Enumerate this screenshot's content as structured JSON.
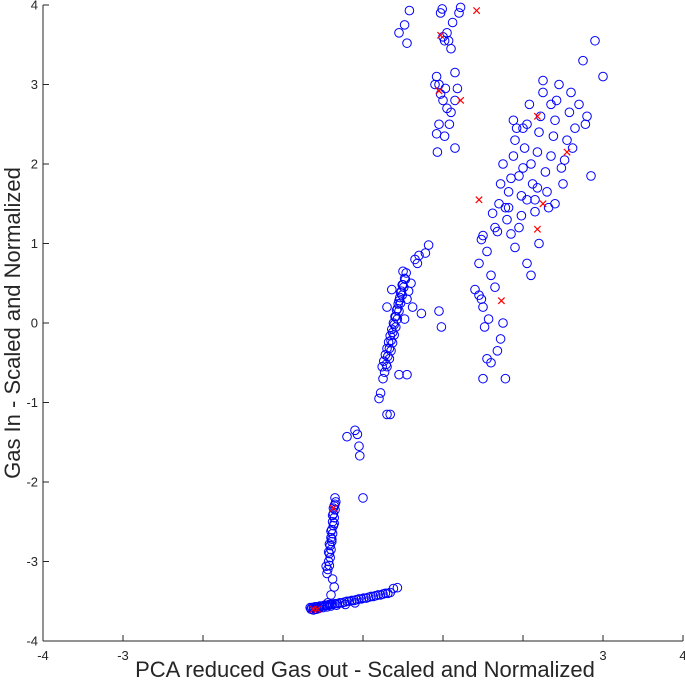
{
  "chart_data": {
    "type": "scatter",
    "xlabel": "PCA reduced Gas out - Scaled and Normalized",
    "ylabel": "Gas In - Scaled and Normalized",
    "xlim": [
      -4,
      4
    ],
    "ylim": [
      -4,
      4
    ],
    "x_tick_labels": [
      {
        "value": -4,
        "label": "-4"
      },
      {
        "value": -3,
        "label": "-3"
      },
      {
        "value": 3,
        "label": "3"
      },
      {
        "value": 4,
        "label": "4"
      }
    ],
    "y_tick_labels": [
      {
        "value": -4,
        "label": "-4"
      },
      {
        "value": -3,
        "label": "-3"
      },
      {
        "value": -2,
        "label": "-2"
      },
      {
        "value": -1,
        "label": "-1"
      },
      {
        "value": 0,
        "label": "0"
      },
      {
        "value": 1,
        "label": "1"
      },
      {
        "value": 2,
        "label": "2"
      },
      {
        "value": 3,
        "label": "3"
      },
      {
        "value": 4,
        "label": "4"
      }
    ],
    "x_ticks": [
      -4,
      -3,
      -2,
      -1,
      0,
      1,
      2,
      3,
      4
    ],
    "grid": false,
    "series": [
      {
        "marker": "circle",
        "color": "#0000ff",
        "points": [
          [
            -0.66,
            -3.58
          ],
          [
            -0.64,
            -3.58
          ],
          [
            -0.62,
            -3.58
          ],
          [
            -0.6,
            -3.57
          ],
          [
            -0.58,
            -3.57
          ],
          [
            -0.56,
            -3.58
          ],
          [
            -0.54,
            -3.56
          ],
          [
            -0.52,
            -3.56
          ],
          [
            -0.5,
            -3.56
          ],
          [
            -0.48,
            -3.55
          ],
          [
            -0.46,
            -3.55
          ],
          [
            -0.44,
            -3.55
          ],
          [
            -0.42,
            -3.54
          ],
          [
            -0.4,
            -3.54
          ],
          [
            -0.38,
            -3.54
          ],
          [
            -0.35,
            -3.53
          ],
          [
            -0.32,
            -3.53
          ],
          [
            -0.29,
            -3.52
          ],
          [
            -0.26,
            -3.52
          ],
          [
            -0.23,
            -3.51
          ],
          [
            -0.2,
            -3.5
          ],
          [
            -0.17,
            -3.5
          ],
          [
            -0.14,
            -3.49
          ],
          [
            -0.11,
            -3.49
          ],
          [
            -0.08,
            -3.48
          ],
          [
            -0.05,
            -3.47
          ],
          [
            -0.02,
            -3.47
          ],
          [
            0.01,
            -3.46
          ],
          [
            0.04,
            -3.46
          ],
          [
            0.07,
            -3.45
          ],
          [
            0.1,
            -3.44
          ],
          [
            0.13,
            -3.44
          ],
          [
            0.16,
            -3.43
          ],
          [
            0.19,
            -3.42
          ],
          [
            0.22,
            -3.42
          ],
          [
            0.25,
            -3.41
          ],
          [
            0.28,
            -3.4
          ],
          [
            0.31,
            -3.4
          ],
          [
            0.34,
            -3.39
          ],
          [
            0.38,
            -3.34
          ],
          [
            0.43,
            -3.33
          ],
          [
            -0.33,
            -3.55
          ],
          [
            -0.22,
            -3.54
          ],
          [
            -0.1,
            -3.52
          ],
          [
            -0.6,
            -3.6
          ],
          [
            -0.55,
            -3.59
          ],
          [
            -0.5,
            -3.58
          ],
          [
            -0.45,
            -3.57
          ],
          [
            -0.4,
            -3.56
          ],
          [
            -0.65,
            -3.6
          ],
          [
            -0.62,
            -3.61
          ],
          [
            -0.58,
            -3.6
          ],
          [
            -0.35,
            -2.2
          ],
          [
            -0.34,
            -2.25
          ],
          [
            -0.36,
            -2.3
          ],
          [
            -0.35,
            -2.35
          ],
          [
            -0.37,
            -2.4
          ],
          [
            -0.36,
            -2.45
          ],
          [
            -0.38,
            -2.5
          ],
          [
            -0.37,
            -2.55
          ],
          [
            -0.39,
            -2.6
          ],
          [
            -0.38,
            -2.65
          ],
          [
            -0.4,
            -2.7
          ],
          [
            -0.39,
            -2.75
          ],
          [
            -0.41,
            -2.8
          ],
          [
            -0.4,
            -2.85
          ],
          [
            -0.42,
            -2.9
          ],
          [
            -0.41,
            -2.95
          ],
          [
            -0.43,
            -3.0
          ],
          [
            -0.42,
            -3.05
          ],
          [
            -0.44,
            -3.1
          ],
          [
            -0.45,
            -3.15
          ],
          [
            -0.46,
            -3.06
          ],
          [
            -0.38,
            -2.42
          ],
          [
            -0.36,
            -2.52
          ],
          [
            -0.4,
            -2.62
          ],
          [
            -0.39,
            -2.72
          ],
          [
            -0.35,
            -2.28
          ],
          [
            -0.37,
            -2.33
          ],
          [
            -0.42,
            -2.78
          ],
          [
            -0.43,
            -2.88
          ],
          [
            -0.38,
            -3.22
          ],
          [
            -0.36,
            -3.32
          ],
          [
            -0.4,
            -3.42
          ],
          [
            -0.44,
            -3.52
          ],
          [
            0.0,
            -2.2
          ],
          [
            -0.2,
            -1.43
          ],
          [
            -0.1,
            -1.35
          ],
          [
            -0.07,
            -1.4
          ],
          [
            -0.05,
            -1.55
          ],
          [
            -0.04,
            -1.67
          ],
          [
            0.3,
            -1.15
          ],
          [
            0.34,
            -1.15
          ],
          [
            0.45,
            -0.65
          ],
          [
            0.2,
            -0.95
          ],
          [
            0.25,
            -0.7
          ],
          [
            0.22,
            -0.88
          ],
          [
            0.24,
            -0.55
          ],
          [
            0.26,
            -0.48
          ],
          [
            0.28,
            -0.4
          ],
          [
            0.3,
            -0.32
          ],
          [
            0.32,
            -0.24
          ],
          [
            0.34,
            -0.16
          ],
          [
            0.36,
            -0.08
          ],
          [
            0.38,
            0.0
          ],
          [
            0.4,
            0.08
          ],
          [
            0.42,
            0.16
          ],
          [
            0.44,
            0.24
          ],
          [
            0.46,
            0.32
          ],
          [
            0.48,
            0.4
          ],
          [
            0.5,
            0.48
          ],
          [
            0.52,
            0.56
          ],
          [
            0.54,
            0.63
          ],
          [
            0.3,
            -0.55
          ],
          [
            0.33,
            -0.45
          ],
          [
            0.35,
            -0.35
          ],
          [
            0.37,
            -0.25
          ],
          [
            0.39,
            -0.15
          ],
          [
            0.41,
            -0.05
          ],
          [
            0.43,
            0.05
          ],
          [
            0.45,
            0.15
          ],
          [
            0.47,
            0.25
          ],
          [
            0.49,
            0.35
          ],
          [
            0.51,
            0.45
          ],
          [
            0.53,
            0.55
          ],
          [
            0.27,
            -0.62
          ],
          [
            0.29,
            -0.52
          ],
          [
            0.31,
            -0.42
          ],
          [
            0.33,
            -0.32
          ],
          [
            0.35,
            -0.22
          ],
          [
            0.37,
            -0.12
          ],
          [
            0.39,
            -0.02
          ],
          [
            0.41,
            0.08
          ],
          [
            0.43,
            0.18
          ],
          [
            0.45,
            0.28
          ],
          [
            0.47,
            0.38
          ],
          [
            0.49,
            0.48
          ],
          [
            0.55,
            0.3
          ],
          [
            0.57,
            0.4
          ],
          [
            0.6,
            0.5
          ],
          [
            0.62,
            0.2
          ],
          [
            0.65,
            0.8
          ],
          [
            0.7,
            0.85
          ],
          [
            0.68,
            0.75
          ],
          [
            0.73,
            0.12
          ],
          [
            0.78,
            0.88
          ],
          [
            0.82,
            0.98
          ],
          [
            0.5,
            0.65
          ],
          [
            0.52,
            0.05
          ],
          [
            0.3,
            0.2
          ],
          [
            0.36,
            0.42
          ],
          [
            0.95,
            0.15
          ],
          [
            0.98,
            -0.05
          ],
          [
            0.55,
            -0.65
          ],
          [
            0.45,
            3.65
          ],
          [
            0.55,
            3.52
          ],
          [
            0.52,
            3.75
          ],
          [
            0.58,
            3.93
          ],
          [
            0.9,
            3.0
          ],
          [
            0.92,
            3.1
          ],
          [
            0.95,
            3.0
          ],
          [
            0.97,
            3.9
          ],
          [
            0.99,
            3.95
          ],
          [
            1.0,
            3.6
          ],
          [
            1.02,
            3.55
          ],
          [
            1.05,
            3.65
          ],
          [
            1.07,
            3.55
          ],
          [
            1.1,
            3.45
          ],
          [
            1.12,
            3.78
          ],
          [
            1.15,
            3.15
          ],
          [
            1.18,
            2.95
          ],
          [
            1.2,
            3.9
          ],
          [
            1.22,
            3.97
          ],
          [
            1.0,
            2.8
          ],
          [
            0.95,
            2.5
          ],
          [
            0.92,
            2.38
          ],
          [
            0.93,
            2.15
          ],
          [
            1.05,
            2.7
          ],
          [
            1.08,
            2.5
          ],
          [
            1.02,
            2.35
          ],
          [
            1.1,
            2.65
          ],
          [
            1.15,
            2.8
          ],
          [
            0.97,
            2.88
          ],
          [
            1.03,
            2.95
          ],
          [
            1.15,
            2.2
          ],
          [
            1.4,
            0.42
          ],
          [
            1.45,
            0.35
          ],
          [
            1.48,
            0.3
          ],
          [
            1.5,
            0.2
          ],
          [
            1.52,
            -0.05
          ],
          [
            1.55,
            0.9
          ],
          [
            1.5,
            1.1
          ],
          [
            1.48,
            1.05
          ],
          [
            1.45,
            0.75
          ],
          [
            1.6,
            0.6
          ],
          [
            1.62,
            1.38
          ],
          [
            1.65,
            1.2
          ],
          [
            1.68,
            1.15
          ],
          [
            1.7,
            1.5
          ],
          [
            1.72,
            1.75
          ],
          [
            1.75,
            2.0
          ],
          [
            1.78,
            1.45
          ],
          [
            1.8,
            1.3
          ],
          [
            1.82,
            1.65
          ],
          [
            1.85,
            1.82
          ],
          [
            1.88,
            2.1
          ],
          [
            1.9,
            2.3
          ],
          [
            1.92,
            2.45
          ],
          [
            1.95,
            1.85
          ],
          [
            1.98,
            1.6
          ],
          [
            2.0,
            1.95
          ],
          [
            2.02,
            2.2
          ],
          [
            2.05,
            2.5
          ],
          [
            2.08,
            2.75
          ],
          [
            2.1,
            2.0
          ],
          [
            2.12,
            1.75
          ],
          [
            2.15,
            1.55
          ],
          [
            2.18,
            2.15
          ],
          [
            2.2,
            2.4
          ],
          [
            2.22,
            2.6
          ],
          [
            2.25,
            2.9
          ],
          [
            2.28,
            1.9
          ],
          [
            2.3,
            1.65
          ],
          [
            2.32,
            1.45
          ],
          [
            2.35,
            2.1
          ],
          [
            2.38,
            2.35
          ],
          [
            2.4,
            2.55
          ],
          [
            2.42,
            2.8
          ],
          [
            2.45,
            3.0
          ],
          [
            2.48,
            1.95
          ],
          [
            2.5,
            1.75
          ],
          [
            2.52,
            2.05
          ],
          [
            2.55,
            2.3
          ],
          [
            2.58,
            2.65
          ],
          [
            2.6,
            2.9
          ],
          [
            2.62,
            2.2
          ],
          [
            2.65,
            2.45
          ],
          [
            2.7,
            2.75
          ],
          [
            2.75,
            3.3
          ],
          [
            2.78,
            2.5
          ],
          [
            2.8,
            2.6
          ],
          [
            2.85,
            1.85
          ],
          [
            2.9,
            3.55
          ],
          [
            3.0,
            3.1
          ],
          [
            2.25,
            3.05
          ],
          [
            2.05,
            1.55
          ],
          [
            1.95,
            1.2
          ],
          [
            1.9,
            0.95
          ],
          [
            2.05,
            0.75
          ],
          [
            2.1,
            0.6
          ],
          [
            2.2,
            1.0
          ],
          [
            2.15,
            1.4
          ],
          [
            1.75,
            0.0
          ],
          [
            1.72,
            -0.2
          ],
          [
            1.68,
            -0.35
          ],
          [
            1.6,
            -0.5
          ],
          [
            1.78,
            -0.7
          ],
          [
            1.65,
            0.45
          ],
          [
            1.57,
            0.05
          ],
          [
            1.55,
            -0.45
          ],
          [
            1.5,
            -0.7
          ],
          [
            1.85,
            1.12
          ],
          [
            1.98,
            1.35
          ],
          [
            1.82,
            1.45
          ],
          [
            2.35,
            2.75
          ],
          [
            2.4,
            1.5
          ],
          [
            2.18,
            1.7
          ],
          [
            2.0,
            2.45
          ],
          [
            1.88,
            2.55
          ]
        ]
      },
      {
        "marker": "cross",
        "color": "#ff0000",
        "points": [
          [
            -0.62,
            -3.6
          ],
          [
            -0.57,
            -3.6
          ],
          [
            -0.37,
            -2.33
          ],
          [
            0.95,
            2.92
          ],
          [
            0.97,
            3.62
          ],
          [
            1.22,
            2.8
          ],
          [
            1.42,
            3.93
          ],
          [
            1.45,
            1.55
          ],
          [
            1.73,
            0.28
          ],
          [
            2.18,
            2.6
          ],
          [
            2.18,
            1.18
          ],
          [
            2.25,
            1.5
          ],
          [
            2.55,
            2.15
          ]
        ]
      }
    ]
  }
}
